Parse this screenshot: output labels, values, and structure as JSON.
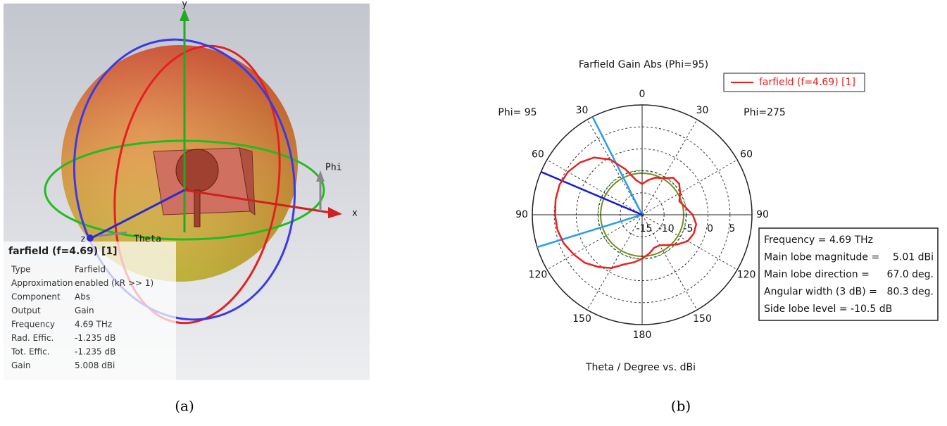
{
  "panel_a": {
    "axis_y": "y",
    "axis_x": "x",
    "axis_z": "z",
    "label_phi": "Phi",
    "label_theta": "Theta",
    "info_title": "farfield (f=4.69) [1]",
    "info_rows": [
      [
        "Type",
        "Farfield"
      ],
      [
        "Approximation",
        "enabled (kR >> 1)"
      ],
      [
        "Component",
        "Abs"
      ],
      [
        "Output",
        "Gain"
      ],
      [
        "Frequency",
        "4.69 THz"
      ],
      [
        "Rad. Effic.",
        "-1.235 dB"
      ],
      [
        "Tot. Effic.",
        "-1.235 dB"
      ],
      [
        "Gain",
        "5.008 dBi"
      ]
    ],
    "caption": "(a)"
  },
  "chart_data": {
    "type": "polar",
    "title": "Farfield Gain Abs (Phi=95)",
    "x_label": "Theta / Degree vs. dBi",
    "left_label": "Phi= 95",
    "right_label": "Phi=275",
    "caption": "(b)",
    "angles": [
      0,
      10,
      20,
      30,
      40,
      50,
      60,
      70,
      80,
      90,
      100,
      110,
      120,
      130,
      140,
      150,
      160,
      170,
      180,
      190,
      200,
      210,
      220,
      230,
      240,
      250,
      260,
      270,
      280,
      290,
      300,
      310,
      320,
      330,
      340,
      350
    ],
    "angleticks": [
      {
        "value": 0,
        "label": "0"
      },
      {
        "value": 30,
        "label": "30"
      },
      {
        "value": 60,
        "label": "60"
      },
      {
        "value": 90,
        "label": "90"
      },
      {
        "value": 120,
        "label": "120"
      },
      {
        "value": 150,
        "label": "150"
      },
      {
        "value": 180,
        "label": "180"
      },
      {
        "value": 210,
        "label": "150"
      },
      {
        "value": 240,
        "label": "120"
      },
      {
        "value": 270,
        "label": "90"
      },
      {
        "value": 300,
        "label": "60"
      },
      {
        "value": 330,
        "label": "30"
      }
    ],
    "rlim": [
      -15,
      10
    ],
    "rticks": [
      -15,
      -10,
      -5,
      0,
      5
    ],
    "series": [
      {
        "name": "farfield (f=4.69) [1]",
        "color": "#e8211f",
        "values": [
          -8,
          -7,
          -6,
          -5.4,
          -4,
          -4,
          -5,
          -6,
          -5,
          -3.5,
          -2.5,
          -2.5,
          -3,
          -4.5,
          -6,
          -7,
          -7,
          -6,
          -5,
          -4,
          -3,
          -1,
          0.5,
          2,
          3,
          4,
          4.6,
          4.8,
          5,
          5,
          4.5,
          3.5,
          2,
          -0.5,
          -4,
          -7
        ]
      }
    ],
    "info_box": [
      {
        "label": "Frequency = 4.69 THz"
      },
      {
        "label": "Main lobe magnitude =",
        "value": 5.01,
        "value_label": "5.01 dBi"
      },
      {
        "label": "Main lobe direction =",
        "value": 67,
        "value_label": "67.0 deg."
      },
      {
        "label": "Angular width (3 dB) =",
        "value": 80.3,
        "value_label": "80.3 deg."
      },
      {
        "label": "Side lobe level = -10.5 dB"
      }
    ]
  }
}
